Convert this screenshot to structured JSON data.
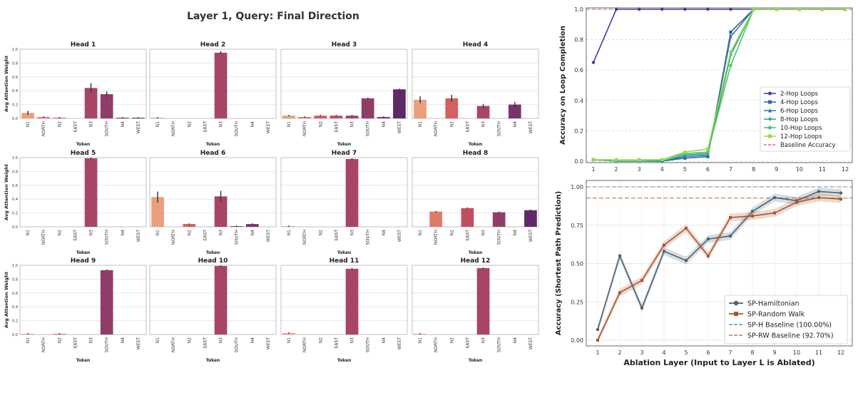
{
  "chart_data": [
    {
      "type": "bar",
      "suptitle": "Layer 1, Query: Final Direction",
      "ylabel": "Avg Attention Weight",
      "xlabel": "Token",
      "ylim": [
        0,
        1.0
      ],
      "yticks": [
        0.0,
        0.2,
        0.4,
        0.6,
        0.8,
        1.0
      ],
      "yticklabels": [
        "0.0",
        "0.2",
        "0.4",
        "0.6",
        "0.8",
        "1.0"
      ],
      "panels": [
        {
          "title": "Head 1",
          "categories": [
            "N1",
            "NORTH",
            "N2",
            "EAST",
            "N3",
            "SOUTH",
            "N4",
            "WEST"
          ],
          "values": [
            0.08,
            0.02,
            0.01,
            0,
            0.44,
            0.35,
            0.01,
            0.01
          ],
          "errors": [
            0.03,
            0.01,
            0.01,
            0,
            0.07,
            0.04,
            0.01,
            0.01
          ]
        },
        {
          "title": "Head 2",
          "categories": [
            "N1",
            "NORTH",
            "N2",
            "EAST",
            "N3",
            "SOUTH",
            "N4",
            "WEST"
          ],
          "values": [
            0.01,
            0,
            0,
            0,
            0.95,
            0,
            0,
            0
          ],
          "errors": [
            0.01,
            0,
            0,
            0,
            0.02,
            0,
            0,
            0
          ]
        },
        {
          "title": "Head 3",
          "categories": [
            "N1",
            "NORTH",
            "N2",
            "EAST",
            "N3",
            "SOUTH",
            "N4",
            "WEST"
          ],
          "values": [
            0.04,
            0.02,
            0.04,
            0.04,
            0.04,
            0.29,
            0.02,
            0.42
          ],
          "errors": [
            0.01,
            0.01,
            0.01,
            0.01,
            0.01,
            0.01,
            0.01,
            0.01
          ]
        },
        {
          "title": "Head 4",
          "categories": [
            "N1",
            "NORTH",
            "N2",
            "EAST",
            "N3",
            "SOUTH",
            "N4",
            "WEST"
          ],
          "values": [
            0.27,
            0,
            0.29,
            0,
            0.18,
            0,
            0.2,
            0
          ],
          "errors": [
            0.05,
            0,
            0.05,
            0,
            0.03,
            0,
            0.04,
            0
          ]
        },
        {
          "title": "Head 5",
          "categories": [
            "N1",
            "NORTH",
            "N2",
            "EAST",
            "N3",
            "SOUTH",
            "N4",
            "WEST"
          ],
          "values": [
            0,
            0,
            0,
            0,
            0.99,
            0,
            0,
            0
          ],
          "errors": [
            0,
            0,
            0,
            0,
            0.01,
            0,
            0,
            0
          ]
        },
        {
          "title": "Head 6",
          "categories": [
            "N1",
            "NORTH",
            "N2",
            "EAST",
            "N3",
            "SOUTH",
            "N4",
            "WEST"
          ],
          "values": [
            0.43,
            0,
            0.04,
            0,
            0.44,
            0.01,
            0.04,
            0
          ],
          "errors": [
            0.08,
            0,
            0.01,
            0,
            0.08,
            0.01,
            0.01,
            0
          ]
        },
        {
          "title": "Head 7",
          "categories": [
            "N1",
            "NORTH",
            "N2",
            "EAST",
            "N3",
            "SOUTH",
            "N4",
            "WEST"
          ],
          "values": [
            0.01,
            0,
            0,
            0,
            0.98,
            0,
            0,
            0
          ],
          "errors": [
            0.01,
            0,
            0,
            0,
            0.01,
            0,
            0,
            0
          ]
        },
        {
          "title": "Head 8",
          "categories": [
            "N1",
            "NORTH",
            "N2",
            "EAST",
            "N3",
            "SOUTH",
            "N4",
            "WEST"
          ],
          "values": [
            0,
            0.22,
            0,
            0.27,
            0,
            0.21,
            0,
            0.24
          ],
          "errors": [
            0,
            0.01,
            0,
            0.01,
            0,
            0.01,
            0,
            0.01
          ]
        },
        {
          "title": "Head 9",
          "categories": [
            "N1",
            "NORTH",
            "N2",
            "EAST",
            "N3",
            "SOUTH",
            "N4",
            "WEST"
          ],
          "values": [
            0.01,
            0,
            0.01,
            0,
            0,
            0.93,
            0,
            0
          ],
          "errors": [
            0.01,
            0,
            0.01,
            0,
            0,
            0.01,
            0,
            0
          ]
        },
        {
          "title": "Head 10",
          "categories": [
            "N1",
            "NORTH",
            "N2",
            "EAST",
            "N3",
            "SOUTH",
            "N4",
            "WEST"
          ],
          "values": [
            0,
            0,
            0,
            0,
            0.99,
            0,
            0,
            0
          ],
          "errors": [
            0,
            0,
            0,
            0,
            0.01,
            0,
            0,
            0
          ]
        },
        {
          "title": "Head 11",
          "categories": [
            "N1",
            "NORTH",
            "N2",
            "EAST",
            "N3",
            "SOUTH",
            "N4",
            "WEST"
          ],
          "values": [
            0.02,
            0,
            0,
            0,
            0.95,
            0,
            0,
            0
          ],
          "errors": [
            0.01,
            0,
            0,
            0,
            0.01,
            0,
            0,
            0
          ]
        },
        {
          "title": "Head 12",
          "categories": [
            "N1",
            "NORTH",
            "N2",
            "EAST",
            "N3",
            "SOUTH",
            "N4",
            "WEST"
          ],
          "values": [
            0.01,
            0,
            0,
            0,
            0.96,
            0,
            0,
            0
          ],
          "errors": [
            0.01,
            0,
            0,
            0,
            0.01,
            0,
            0,
            0
          ]
        }
      ],
      "palette": [
        "#e8a07e",
        "#e07a66",
        "#d4605f",
        "#c24e62",
        "#a84566",
        "#913d69",
        "#7a3369",
        "#5e2a66"
      ]
    },
    {
      "type": "line",
      "ylabel": "Accuracy on Loop Completion",
      "x": [
        1,
        2,
        3,
        4,
        5,
        6,
        7,
        8,
        9,
        10,
        11,
        12
      ],
      "xticklabels": [
        "1",
        "2",
        "3",
        "4",
        "5",
        "6",
        "7",
        "8",
        "9",
        "10",
        "11",
        "12"
      ],
      "ylim": [
        0.0,
        1.0
      ],
      "yticks": [
        0.0,
        0.2,
        0.4,
        0.6,
        0.8,
        1.0
      ],
      "yticklabels": [
        "0.0",
        "0.2",
        "0.4",
        "0.6",
        "0.8",
        "1.0"
      ],
      "legend_position": "center-right",
      "series": [
        {
          "name": "2-Hop Loops",
          "color": "#3c3ca0",
          "marker": "circle",
          "values": [
            0.65,
            1,
            1,
            1,
            1,
            1,
            1,
            1,
            1,
            1,
            1,
            1
          ]
        },
        {
          "name": "4-Hop Loops",
          "color": "#3a5fa8",
          "marker": "square",
          "values": [
            0.01,
            0,
            0,
            0,
            0.02,
            0.03,
            0.85,
            1,
            1,
            1,
            1,
            1
          ]
        },
        {
          "name": "6-Hop Loops",
          "color": "#2f7b9a",
          "marker": "triangle",
          "values": [
            0.01,
            0,
            0,
            0,
            0.03,
            0.04,
            0.82,
            1,
            1,
            1,
            1,
            1
          ]
        },
        {
          "name": "8-Hop Loops",
          "color": "#25a083",
          "marker": "diamond",
          "values": [
            0.01,
            0,
            0,
            0,
            0.04,
            0.05,
            0.7,
            1,
            1,
            1,
            1,
            1
          ]
        },
        {
          "name": "10-Hop Loops",
          "color": "#4cc26a",
          "marker": "circle",
          "values": [
            0.01,
            0,
            0,
            0.01,
            0.05,
            0.06,
            0.63,
            1,
            1,
            1,
            1,
            1
          ]
        },
        {
          "name": "12-Hop Loops",
          "color": "#9ad84a",
          "marker": "square",
          "values": [
            0.01,
            0.01,
            0.01,
            0.01,
            0.06,
            0.08,
            0.72,
            1,
            1,
            1,
            1,
            1
          ]
        }
      ],
      "baseline": {
        "name": "Baseline Accuracy",
        "value": 1.0,
        "color": "#d9534f"
      }
    },
    {
      "type": "line",
      "ylabel": "Accuracy (Shortest Path Prediction)",
      "xlabel": "Ablation Layer (Input to Layer L is Ablated)",
      "x": [
        1,
        2,
        3,
        4,
        5,
        6,
        7,
        8,
        9,
        10,
        11,
        12
      ],
      "xticklabels": [
        "1",
        "2",
        "3",
        "4",
        "5",
        "6",
        "7",
        "8",
        "9",
        "10",
        "11",
        "12"
      ],
      "ylim": [
        0.0,
        1.0
      ],
      "yticks": [
        0.0,
        0.25,
        0.5,
        0.75,
        1.0
      ],
      "yticklabels": [
        "0.00",
        "0.25",
        "0.50",
        "0.75",
        "1.00"
      ],
      "legend_position": "bottom-right",
      "series": [
        {
          "name": "SP-Hamiltonian",
          "color": "#4a6275",
          "marker": "circle",
          "values": [
            0.07,
            0.55,
            0.21,
            0.58,
            0.52,
            0.66,
            0.68,
            0.84,
            0.93,
            0.91,
            0.97,
            0.96
          ]
        },
        {
          "name": "SP-Random Walk",
          "color": "#a9562a",
          "marker": "square",
          "values": [
            0.0,
            0.31,
            0.39,
            0.62,
            0.73,
            0.55,
            0.8,
            0.81,
            0.83,
            0.9,
            0.93,
            0.92
          ]
        }
      ],
      "baselines": [
        {
          "name": "SP-H Baseline (100.00%)",
          "value": 1.0,
          "color": "#7d8d99"
        },
        {
          "name": "SP-RW Baseline (92.70%)",
          "value": 0.927,
          "color": "#c0774d"
        }
      ]
    }
  ]
}
